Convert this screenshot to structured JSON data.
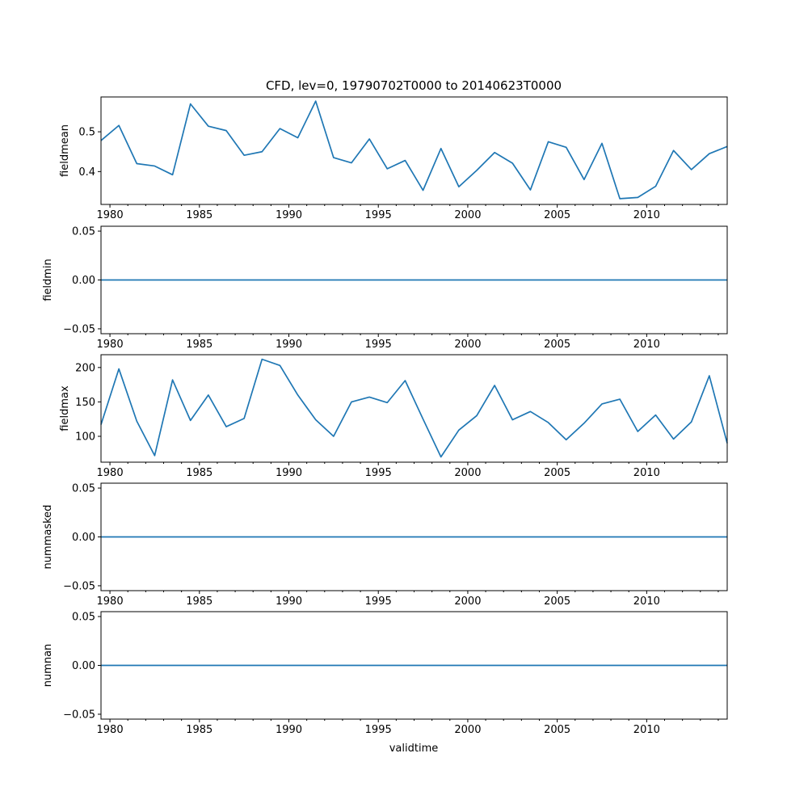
{
  "chart_data": {
    "type": "line",
    "title": "CFD, lev=0, 19790702T0000 to 20140623T0000",
    "xlabel": "validtime",
    "x": [
      1979.5,
      1980.5,
      1981.5,
      1982.5,
      1983.5,
      1984.5,
      1985.5,
      1986.5,
      1987.5,
      1988.5,
      1989.5,
      1990.5,
      1991.5,
      1992.5,
      1993.5,
      1994.5,
      1995.5,
      1996.5,
      1997.5,
      1998.5,
      1999.5,
      2000.5,
      2001.5,
      2002.5,
      2003.5,
      2004.5,
      2005.5,
      2006.5,
      2007.5,
      2008.5,
      2009.5,
      2010.5,
      2011.5,
      2012.5,
      2013.5,
      2014.5
    ],
    "xlim": [
      1979.5,
      2014.5
    ],
    "xticks": [
      1980,
      1985,
      1990,
      1995,
      2000,
      2005,
      2010
    ],
    "xtick_labels": [
      "1980",
      "1985",
      "1990",
      "1995",
      "2000",
      "2005",
      "2010"
    ],
    "line_color": "#1f77b4",
    "panels": [
      {
        "name": "fieldmean",
        "ylabel": "fieldmean",
        "ylim": [
          0.3175,
          0.5875
        ],
        "yticks": [
          0.4,
          0.5
        ],
        "ytick_labels": [
          "0.4",
          "0.5"
        ],
        "values": [
          0.478,
          0.516,
          0.42,
          0.414,
          0.392,
          0.57,
          0.514,
          0.503,
          0.441,
          0.45,
          0.508,
          0.485,
          0.577,
          0.435,
          0.422,
          0.482,
          0.407,
          0.428,
          0.353,
          0.458,
          0.362,
          0.403,
          0.448,
          0.421,
          0.354,
          0.475,
          0.461,
          0.38,
          0.471,
          0.332,
          0.335,
          0.363,
          0.453,
          0.405,
          0.445,
          0.463
        ]
      },
      {
        "name": "fieldmin",
        "ylabel": "fieldmin",
        "ylim": [
          -0.055,
          0.055
        ],
        "yticks": [
          -0.05,
          0,
          0.05
        ],
        "ytick_labels": [
          "−0.05",
          "0.00",
          "0.05"
        ],
        "values": [
          0,
          0,
          0,
          0,
          0,
          0,
          0,
          0,
          0,
          0,
          0,
          0,
          0,
          0,
          0,
          0,
          0,
          0,
          0,
          0,
          0,
          0,
          0,
          0,
          0,
          0,
          0,
          0,
          0,
          0,
          0,
          0,
          0,
          0,
          0,
          0
        ]
      },
      {
        "name": "fieldmax",
        "ylabel": "fieldmax",
        "ylim": [
          62.4,
          218.6
        ],
        "yticks": [
          100,
          150,
          200
        ],
        "ytick_labels": [
          "100",
          "150",
          "200"
        ],
        "values": [
          117,
          198,
          122,
          72,
          182,
          123,
          160,
          114,
          126,
          212,
          203,
          160,
          124,
          100,
          150,
          157,
          149,
          181,
          125,
          70,
          109,
          130,
          174,
          124,
          136,
          120,
          95,
          119,
          147,
          154,
          107,
          131,
          96,
          121,
          188,
          90
        ]
      },
      {
        "name": "nummasked",
        "ylabel": "nummasked",
        "ylim": [
          -0.055,
          0.055
        ],
        "yticks": [
          -0.05,
          0,
          0.05
        ],
        "ytick_labels": [
          "−0.05",
          "0.00",
          "0.05"
        ],
        "values": [
          0,
          0,
          0,
          0,
          0,
          0,
          0,
          0,
          0,
          0,
          0,
          0,
          0,
          0,
          0,
          0,
          0,
          0,
          0,
          0,
          0,
          0,
          0,
          0,
          0,
          0,
          0,
          0,
          0,
          0,
          0,
          0,
          0,
          0,
          0,
          0
        ]
      },
      {
        "name": "numnan",
        "ylabel": "numnan",
        "ylim": [
          -0.055,
          0.055
        ],
        "yticks": [
          -0.05,
          0,
          0.05
        ],
        "ytick_labels": [
          "−0.05",
          "0.00",
          "0.05"
        ],
        "values": [
          0,
          0,
          0,
          0,
          0,
          0,
          0,
          0,
          0,
          0,
          0,
          0,
          0,
          0,
          0,
          0,
          0,
          0,
          0,
          0,
          0,
          0,
          0,
          0,
          0,
          0,
          0,
          0,
          0,
          0,
          0,
          0,
          0,
          0,
          0,
          0
        ]
      }
    ]
  }
}
